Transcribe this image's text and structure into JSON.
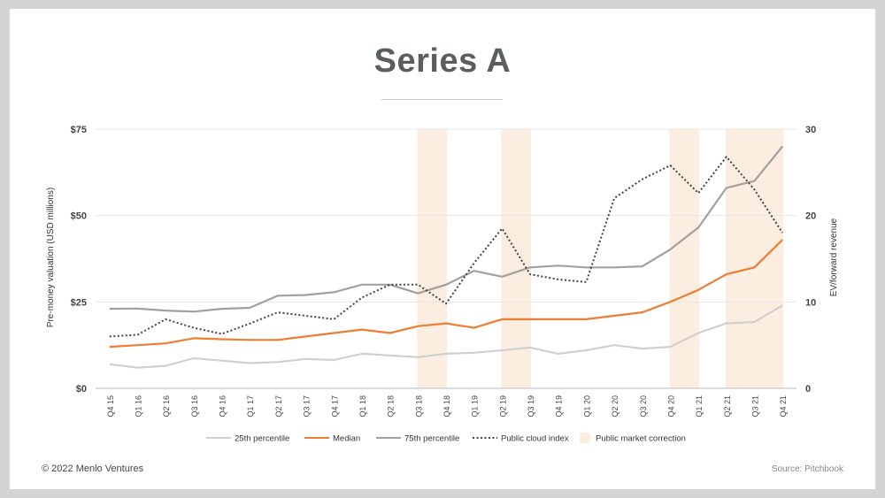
{
  "title": "Series A",
  "footer": {
    "copyright": "© 2022 Menlo Ventures",
    "source": "Source: Pitchbook"
  },
  "colors": {
    "p25": "#d0d0d0",
    "median": "#ed7d31",
    "p75": "#a0a0a0",
    "cloud": "#444444",
    "correction": "#fbeee0"
  },
  "chart_data": {
    "type": "line",
    "categories": [
      "Q4 15",
      "Q1 16",
      "Q2 16",
      "Q3 16",
      "Q4 16",
      "Q1 17",
      "Q2 17",
      "Q3 17",
      "Q4 17",
      "Q1 18",
      "Q2 18",
      "Q3 18",
      "Q4 18",
      "Q1 19",
      "Q2 19",
      "Q3 19",
      "Q4 19",
      "Q1 20",
      "Q2 20",
      "Q3 20",
      "Q4 20",
      "Q1 21",
      "Q2 21",
      "Q3 21",
      "Q4 21"
    ],
    "ylabel": "Pre-money valuation (USD millions)",
    "y2label": "EV/forward revenue",
    "ylim": [
      0,
      75
    ],
    "y2lim": [
      0,
      30
    ],
    "yticks": [
      "$0",
      "$25",
      "$50",
      "$75"
    ],
    "y2ticks": [
      "0",
      "10",
      "20",
      "30"
    ],
    "series": [
      {
        "name": "25th percentile",
        "axis": "left",
        "style": "solid",
        "color": "#d0d0d0",
        "values": [
          7,
          6,
          6.5,
          8.7,
          8,
          7.3,
          7.6,
          8.5,
          8.2,
          10,
          9.5,
          9,
          10,
          10.3,
          11,
          11.8,
          10,
          11,
          12.5,
          11.5,
          12,
          16,
          18.8,
          19.2,
          24
        ]
      },
      {
        "name": "Median",
        "axis": "left",
        "style": "solid",
        "color": "#ed7d31",
        "values": [
          12,
          12.5,
          13,
          14.5,
          14.2,
          14,
          14,
          15,
          16,
          17,
          16,
          18,
          18.8,
          17.5,
          20,
          20,
          20,
          20,
          21,
          22,
          25,
          28.5,
          33,
          35,
          43
        ]
      },
      {
        "name": "75th percentile",
        "axis": "left",
        "style": "solid",
        "color": "#a0a0a0",
        "values": [
          23,
          23.1,
          22.5,
          22.2,
          23,
          23.3,
          26.8,
          27,
          27.8,
          30,
          30,
          27.5,
          30,
          34,
          32.3,
          35,
          35.5,
          35,
          35,
          35.3,
          40.2,
          46.5,
          58,
          60,
          70
        ]
      },
      {
        "name": "Public cloud index",
        "axis": "right",
        "style": "dotted",
        "color": "#444444",
        "values": [
          6,
          6.2,
          8,
          7,
          6.3,
          7.5,
          8.8,
          8.4,
          8,
          10.5,
          12,
          12,
          9.8,
          14.5,
          18.5,
          13.2,
          12.6,
          12.3,
          22,
          24.2,
          25.8,
          22.6,
          26.8,
          23,
          18
        ]
      }
    ],
    "shaded_periods": {
      "name": "Public market correction",
      "ranges": [
        [
          "Q3 18",
          "Q4 18"
        ],
        [
          "Q2 19",
          "Q3 19"
        ],
        [
          "Q4 20",
          "Q1 21"
        ],
        [
          "Q2 21",
          "Q4 21"
        ]
      ]
    },
    "legend_position": "bottom",
    "grid": true
  }
}
